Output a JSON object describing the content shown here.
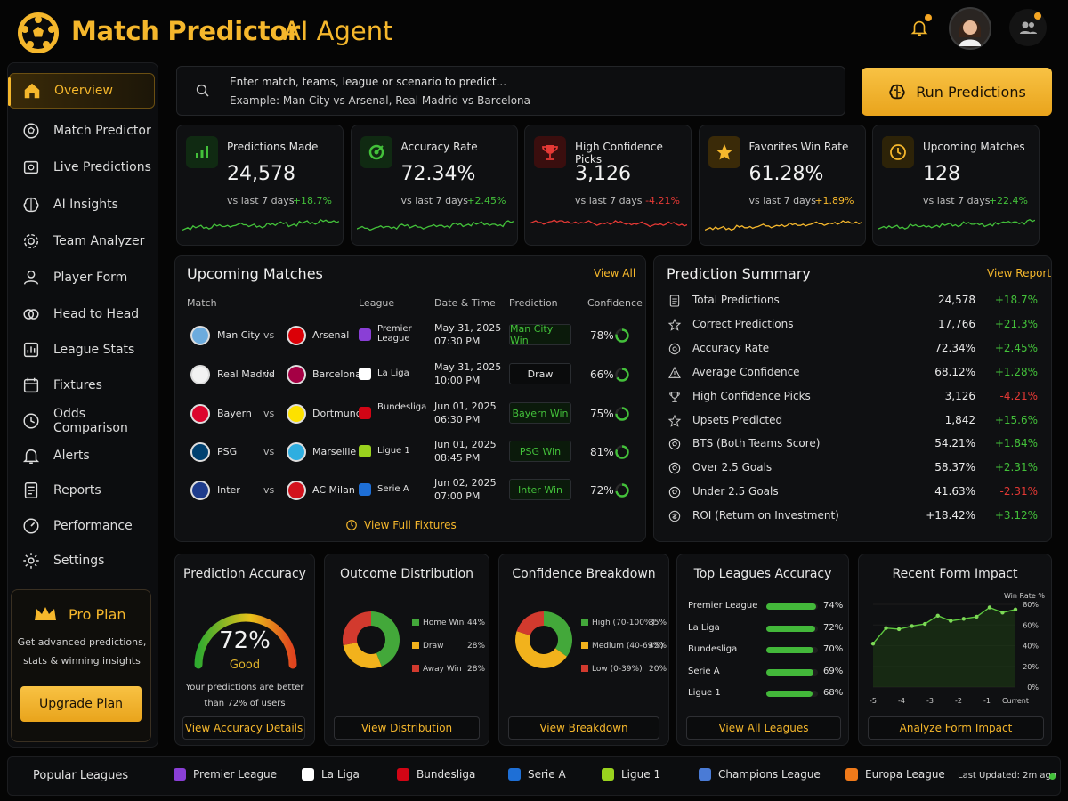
{
  "app": {
    "title_main": "Match Predictor",
    "title_sub": "AI Agent"
  },
  "sidebar": {
    "items": [
      {
        "label": "Overview",
        "icon": "home-icon"
      },
      {
        "label": "Match Predictor",
        "icon": "ball-icon"
      },
      {
        "label": "Live Predictions",
        "icon": "live-icon"
      },
      {
        "label": "AI Insights",
        "icon": "brain-icon"
      },
      {
        "label": "Team Analyzer",
        "icon": "gear-icon"
      },
      {
        "label": "Player Form",
        "icon": "user-icon"
      },
      {
        "label": "Head to Head",
        "icon": "h2h-icon"
      },
      {
        "label": "League Stats",
        "icon": "stats-icon"
      },
      {
        "label": "Fixtures",
        "icon": "calendar-icon"
      },
      {
        "label": "Odds Comparison",
        "icon": "odds-icon"
      },
      {
        "label": "Alerts",
        "icon": "bell-icon"
      },
      {
        "label": "Reports",
        "icon": "report-icon"
      },
      {
        "label": "Performance",
        "icon": "performance-icon"
      },
      {
        "label": "Settings",
        "icon": "settings-icon"
      }
    ],
    "pro": {
      "title": "Pro Plan",
      "desc_1": "Get advanced predictions,",
      "desc_2": "stats & winning insights",
      "button": "Upgrade Plan"
    }
  },
  "search": {
    "line1": "Enter match, teams, league or scenario to predict...",
    "line2": "Example: Man City vs Arsenal, Real Madrid vs Barcelona"
  },
  "run_button": "Run Predictions",
  "stats": [
    {
      "label": "Predictions Made",
      "value": "24,578",
      "compare": "vs last 7 days",
      "change": "+18.7%",
      "color": "#43c13a"
    },
    {
      "label": "Accuracy Rate",
      "value": "72.34%",
      "compare": "vs last 7 days",
      "change": "+2.45%",
      "color": "#43c13a"
    },
    {
      "label": "High Confidence Picks",
      "value": "3,126",
      "compare": "vs last 7 days",
      "change": "-4.21%",
      "color": "#e53935"
    },
    {
      "label": "Favorites Win Rate",
      "value": "61.28%",
      "compare": "vs last 7 days",
      "change": "+1.89%",
      "color": "#f5b72c"
    },
    {
      "label": "Upcoming Matches",
      "value": "128",
      "compare": "vs last 7 days",
      "change": "+22.4%",
      "color": "#43c13a"
    }
  ],
  "upcoming": {
    "title": "Upcoming Matches",
    "view_all": "View All",
    "headers": {
      "match": "Match",
      "league": "League",
      "date": "Date & Time",
      "prediction": "Prediction",
      "confidence": "Confidence"
    },
    "vs": "vs",
    "rows": [
      {
        "home": "Man City",
        "away": "Arsenal",
        "league": "Premier League",
        "date": "May 31, 2025",
        "time": "07:30 PM",
        "prediction": "Man City Win",
        "pred_color": "#43c13a",
        "confidence": "78%",
        "conf_value": 78,
        "home_color": "#6cabdd",
        "away_color": "#db0007"
      },
      {
        "home": "Real Madrid",
        "away": "Barcelona",
        "league": "La Liga",
        "date": "May 31, 2025",
        "time": "10:00 PM",
        "prediction": "Draw",
        "pred_color": "#e6e6e6",
        "confidence": "66%",
        "conf_value": 66,
        "home_color": "#f2f2f2",
        "away_color": "#a50044"
      },
      {
        "home": "Bayern",
        "away": "Dortmund",
        "league": "Bundesliga",
        "date": "Jun 01, 2025",
        "time": "06:30 PM",
        "prediction": "Bayern Win",
        "pred_color": "#43c13a",
        "confidence": "75%",
        "conf_value": 75,
        "home_color": "#dc052d",
        "away_color": "#fde100"
      },
      {
        "home": "PSG",
        "away": "Marseille",
        "league": "Ligue 1",
        "date": "Jun 01, 2025",
        "time": "08:45 PM",
        "prediction": "PSG Win",
        "pred_color": "#43c13a",
        "confidence": "81%",
        "conf_value": 81,
        "home_color": "#004170",
        "away_color": "#2faee0"
      },
      {
        "home": "Inter",
        "away": "AC Milan",
        "league": "Serie A",
        "date": "Jun 02, 2025",
        "time": "07:00 PM",
        "prediction": "Inter Win",
        "pred_color": "#43c13a",
        "confidence": "72%",
        "conf_value": 72,
        "home_color": "#1e3c8c",
        "away_color": "#d2121c"
      }
    ],
    "full_fixtures": "View Full Fixtures"
  },
  "summary": {
    "title": "Prediction Summary",
    "view_report": "View Report",
    "rows": [
      {
        "label": "Total Predictions",
        "value": "24,578",
        "change": "+18.7%",
        "color": "#43c13a",
        "icon": "document-icon"
      },
      {
        "label": "Correct Predictions",
        "value": "17,766",
        "change": "+21.3%",
        "color": "#43c13a",
        "icon": "star-icon"
      },
      {
        "label": "Accuracy Rate",
        "value": "72.34%",
        "change": "+2.45%",
        "color": "#43c13a",
        "icon": "target-icon"
      },
      {
        "label": "Average Confidence",
        "value": "68.12%",
        "change": "+1.28%",
        "color": "#43c13a",
        "icon": "warning-icon"
      },
      {
        "label": "High Confidence Picks",
        "value": "3,126",
        "change": "-4.21%",
        "color": "#e53935",
        "icon": "trophy-icon"
      },
      {
        "label": "Upsets Predicted",
        "value": "1,842",
        "change": "+15.6%",
        "color": "#43c13a",
        "icon": "star-icon"
      },
      {
        "label": "BTS (Both Teams Score)",
        "value": "54.21%",
        "change": "+1.84%",
        "color": "#43c13a",
        "icon": "ball-icon"
      },
      {
        "label": "Over 2.5 Goals",
        "value": "58.37%",
        "change": "+2.31%",
        "color": "#43c13a",
        "icon": "ball-icon"
      },
      {
        "label": "Under 2.5 Goals",
        "value": "41.63%",
        "change": "-2.31%",
        "color": "#e53935",
        "icon": "ball-icon"
      },
      {
        "label": "ROI (Return on Investment)",
        "value": "+18.42%",
        "change": "+3.12%",
        "color": "#43c13a",
        "icon": "roi-icon"
      }
    ]
  },
  "accuracy": {
    "title": "Prediction Accuracy",
    "value": "72%",
    "gauge_value": 72,
    "rating": "Good",
    "desc_1": "Your predictions are better",
    "desc_2": "than 72% of users",
    "button": "View Accuracy Details"
  },
  "outcome": {
    "title": "Outcome Distribution",
    "button": "View Distribution",
    "segments": [
      {
        "label": "Home Win",
        "value": 44,
        "pct": "44%",
        "color": "#43a83a"
      },
      {
        "label": "Draw",
        "value": 28,
        "pct": "28%",
        "color": "#f2b21c"
      },
      {
        "label": "Away Win",
        "value": 28,
        "pct": "28%",
        "color": "#d23a2e"
      }
    ]
  },
  "confidence": {
    "title": "Confidence Breakdown",
    "button": "View Breakdown",
    "segments": [
      {
        "label": "High (70-100%)",
        "value": 35,
        "pct": "35%",
        "color": "#43a83a"
      },
      {
        "label": "Medium (40-69%)",
        "value": 45,
        "pct": "45%",
        "color": "#f2b21c"
      },
      {
        "label": "Low (0-39%)",
        "value": 20,
        "pct": "20%",
        "color": "#d23a2e"
      }
    ]
  },
  "leagues": {
    "title": "Top Leagues Accuracy",
    "button": "View All Leagues",
    "rows": [
      {
        "name": "Premier League",
        "value": 74,
        "pct": "74%"
      },
      {
        "name": "La Liga",
        "value": 72,
        "pct": "72%"
      },
      {
        "name": "Bundesliga",
        "value": 70,
        "pct": "70%"
      },
      {
        "name": "Serie A",
        "value": 69,
        "pct": "69%"
      },
      {
        "name": "Ligue 1",
        "value": 68,
        "pct": "68%"
      }
    ]
  },
  "form": {
    "title": "Recent Form Impact",
    "button": "Analyze Form Impact"
  },
  "chart_data": {
    "type": "line",
    "title": "Recent Form Impact",
    "ylabel": "Win Rate %",
    "ylim": [
      0,
      80
    ],
    "y_ticks": [
      "80%",
      "60%",
      "40%",
      "20%",
      "0%"
    ],
    "x_ticks": [
      "-5",
      "-4",
      "-3",
      "-2",
      "-1",
      "Current"
    ],
    "x": [
      0,
      0.5,
      1,
      1.5,
      2,
      2.5,
      3,
      3.5,
      4,
      4.5,
      5,
      5.5
    ],
    "values": [
      42,
      57,
      56,
      59,
      61,
      69,
      64,
      66,
      68,
      77,
      72,
      75
    ]
  },
  "footer": {
    "title": "Popular Leagues",
    "leagues": [
      {
        "name": "Premier League",
        "color": "#8a3fd6"
      },
      {
        "name": "La Liga",
        "color": "#ffffff"
      },
      {
        "name": "Bundesliga",
        "color": "#d20515"
      },
      {
        "name": "Serie A",
        "color": "#1e6fd6"
      },
      {
        "name": "Ligue 1",
        "color": "#9ad21e"
      },
      {
        "name": "Champions League",
        "color": "#4a7bd6"
      },
      {
        "name": "Europa League",
        "color": "#f07a1a"
      }
    ],
    "updated": "Last Updated: 2m ago",
    "status_color": "#43c13a"
  }
}
